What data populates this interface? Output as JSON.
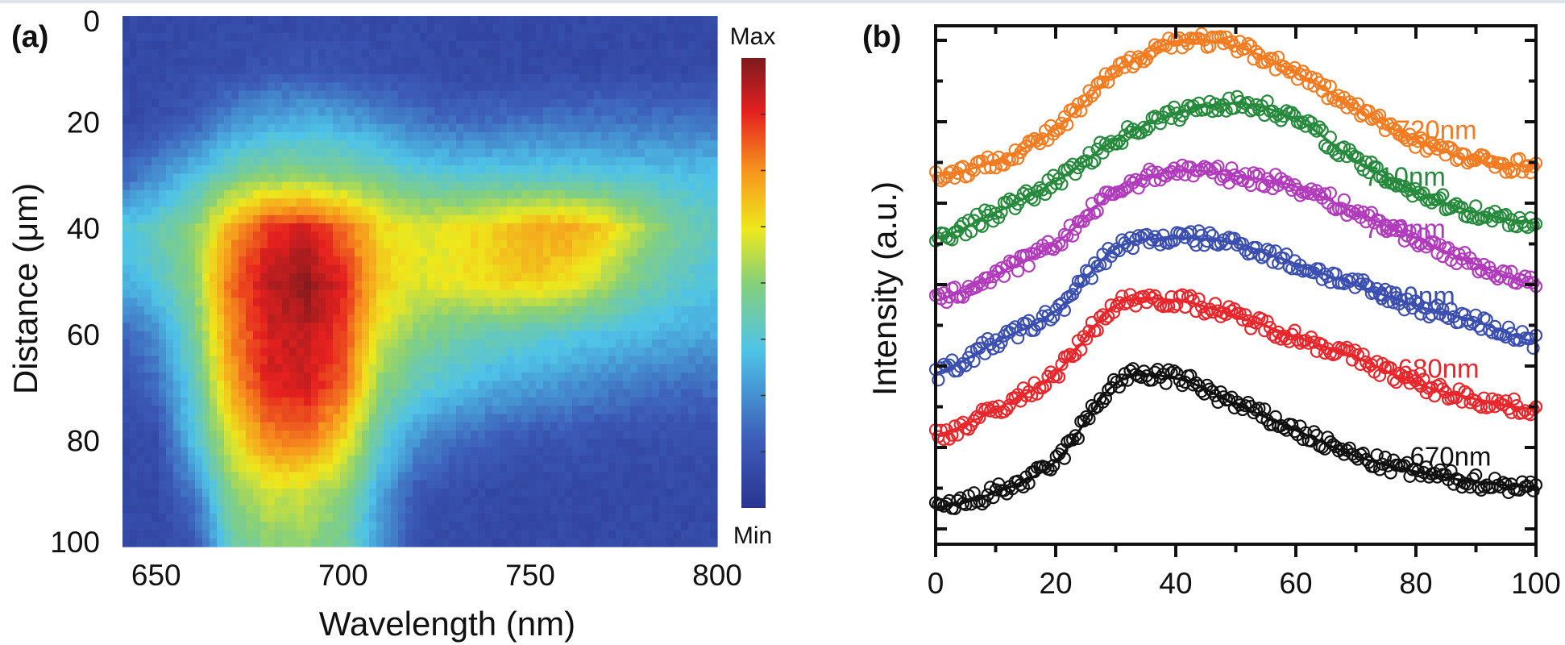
{
  "chart_data": [
    {
      "panel_label": "(a)",
      "type": "heatmap",
      "xlabel": "Wavelength (nm)",
      "ylabel": "Distance (μm)",
      "xlim": [
        641,
        800
      ],
      "ylim": [
        100,
        0
      ],
      "xticks": [
        "650",
        "700",
        "750",
        "800"
      ],
      "yticks": [
        "0",
        "20",
        "40",
        "60",
        "80",
        "100"
      ],
      "colorbar": {
        "max_label": "Max",
        "min_label": "Min",
        "colormap": "jet"
      },
      "grid_wavelengths": [
        640,
        650,
        660,
        670,
        680,
        690,
        700,
        710,
        720,
        730,
        740,
        750,
        760,
        770,
        780,
        790,
        800
      ],
      "grid_distances": [
        0,
        10,
        20,
        30,
        40,
        50,
        60,
        70,
        80,
        90,
        100
      ],
      "intensity": [
        [
          0.08,
          0.08,
          0.08,
          0.08,
          0.08,
          0.08,
          0.08,
          0.08,
          0.08,
          0.08,
          0.08,
          0.08,
          0.08,
          0.08,
          0.08,
          0.08,
          0.08
        ],
        [
          0.08,
          0.08,
          0.09,
          0.1,
          0.12,
          0.13,
          0.12,
          0.1,
          0.09,
          0.08,
          0.08,
          0.08,
          0.08,
          0.08,
          0.08,
          0.08,
          0.08
        ],
        [
          0.08,
          0.1,
          0.15,
          0.25,
          0.3,
          0.32,
          0.3,
          0.25,
          0.2,
          0.18,
          0.18,
          0.2,
          0.2,
          0.2,
          0.2,
          0.2,
          0.2
        ],
        [
          0.15,
          0.25,
          0.35,
          0.45,
          0.5,
          0.5,
          0.48,
          0.45,
          0.4,
          0.38,
          0.38,
          0.38,
          0.38,
          0.37,
          0.36,
          0.35,
          0.35
        ],
        [
          0.36,
          0.42,
          0.5,
          0.72,
          0.86,
          0.9,
          0.8,
          0.65,
          0.6,
          0.62,
          0.66,
          0.72,
          0.72,
          0.66,
          0.55,
          0.45,
          0.4
        ],
        [
          0.3,
          0.38,
          0.5,
          0.8,
          0.93,
          0.98,
          0.88,
          0.66,
          0.6,
          0.62,
          0.65,
          0.67,
          0.64,
          0.55,
          0.45,
          0.4,
          0.35
        ],
        [
          0.15,
          0.25,
          0.45,
          0.76,
          0.9,
          0.93,
          0.85,
          0.6,
          0.5,
          0.45,
          0.42,
          0.4,
          0.38,
          0.35,
          0.33,
          0.3,
          0.3
        ],
        [
          0.1,
          0.18,
          0.4,
          0.72,
          0.88,
          0.9,
          0.8,
          0.5,
          0.4,
          0.35,
          0.3,
          0.28,
          0.25,
          0.22,
          0.2,
          0.18,
          0.18
        ],
        [
          0.08,
          0.1,
          0.35,
          0.6,
          0.76,
          0.78,
          0.65,
          0.4,
          0.25,
          0.18,
          0.15,
          0.12,
          0.12,
          0.1,
          0.1,
          0.1,
          0.1
        ],
        [
          0.08,
          0.08,
          0.2,
          0.5,
          0.58,
          0.58,
          0.5,
          0.3,
          0.12,
          0.1,
          0.08,
          0.08,
          0.08,
          0.08,
          0.08,
          0.08,
          0.08
        ],
        [
          0.08,
          0.08,
          0.12,
          0.42,
          0.5,
          0.5,
          0.45,
          0.25,
          0.1,
          0.08,
          0.08,
          0.08,
          0.08,
          0.08,
          0.08,
          0.08,
          0.08
        ]
      ]
    },
    {
      "panel_label": "(b)",
      "type": "scatter",
      "xlabel": "",
      "ylabel": "Intensity (a.u.)",
      "xlim": [
        0,
        100
      ],
      "ylim": [
        0,
        1
      ],
      "xticks": [
        "0",
        "20",
        "40",
        "60",
        "80",
        "100"
      ],
      "x": [
        0,
        10,
        20,
        30,
        40,
        50,
        60,
        70,
        80,
        90,
        100
      ],
      "series": [
        {
          "name": "670nm",
          "color": "#111111",
          "values": [
            0.07,
            0.1,
            0.16,
            0.31,
            0.32,
            0.27,
            0.22,
            0.17,
            0.14,
            0.12,
            0.11
          ]
        },
        {
          "name": "680nm",
          "color": "#e8262b",
          "values": [
            0.21,
            0.26,
            0.33,
            0.46,
            0.47,
            0.44,
            0.4,
            0.36,
            0.31,
            0.28,
            0.26
          ]
        },
        {
          "name": "690nm",
          "color": "#3b4fb0",
          "values": [
            0.33,
            0.39,
            0.45,
            0.57,
            0.59,
            0.58,
            0.54,
            0.5,
            0.46,
            0.43,
            0.39
          ]
        },
        {
          "name": "700nm",
          "color": "#b23bbd",
          "values": [
            0.47,
            0.52,
            0.58,
            0.68,
            0.72,
            0.71,
            0.69,
            0.64,
            0.59,
            0.54,
            0.5
          ]
        },
        {
          "name": "710nm",
          "color": "#268a3c",
          "values": [
            0.59,
            0.64,
            0.7,
            0.78,
            0.83,
            0.85,
            0.82,
            0.74,
            0.68,
            0.64,
            0.62
          ]
        },
        {
          "name": "720nm",
          "color": "#f47b20",
          "values": [
            0.71,
            0.74,
            0.8,
            0.91,
            0.97,
            0.96,
            0.91,
            0.84,
            0.78,
            0.74,
            0.73
          ]
        }
      ]
    }
  ]
}
